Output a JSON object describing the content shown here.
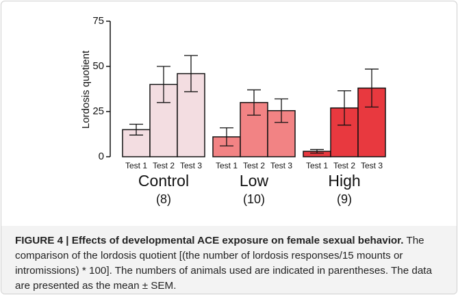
{
  "chart_data": {
    "type": "bar",
    "y_label": "Lordosis quotient",
    "categories": [
      "Test 1",
      "Test 2",
      "Test 3"
    ],
    "series": [
      {
        "name": "Control",
        "subtitle": "(8)",
        "color": "#f3dde1",
        "values": [
          15,
          40,
          46
        ],
        "errors": [
          3,
          10,
          10
        ]
      },
      {
        "name": "Low",
        "subtitle": "(10)",
        "color": "#f28384",
        "values": [
          11,
          30,
          25.5
        ],
        "errors": [
          5,
          7,
          6.5
        ]
      },
      {
        "name": "High",
        "subtitle": "(9)",
        "color": "#e8393f",
        "values": [
          3,
          27,
          38
        ],
        "errors": [
          1,
          9.5,
          10.5
        ]
      }
    ],
    "ylim": [
      0,
      75
    ],
    "yticks": [
      0,
      25,
      50,
      75
    ]
  },
  "caption": {
    "label": "FIGURE 4 | Effects of developmental ACE exposure on female sexual behavior.",
    "text": "The comparison of the lordosis quotient [(the number of lordosis responses/15 mounts or intromissions) * 100]. The numbers of animals used are indicated in parentheses. The data are presented as the mean ± SEM."
  }
}
